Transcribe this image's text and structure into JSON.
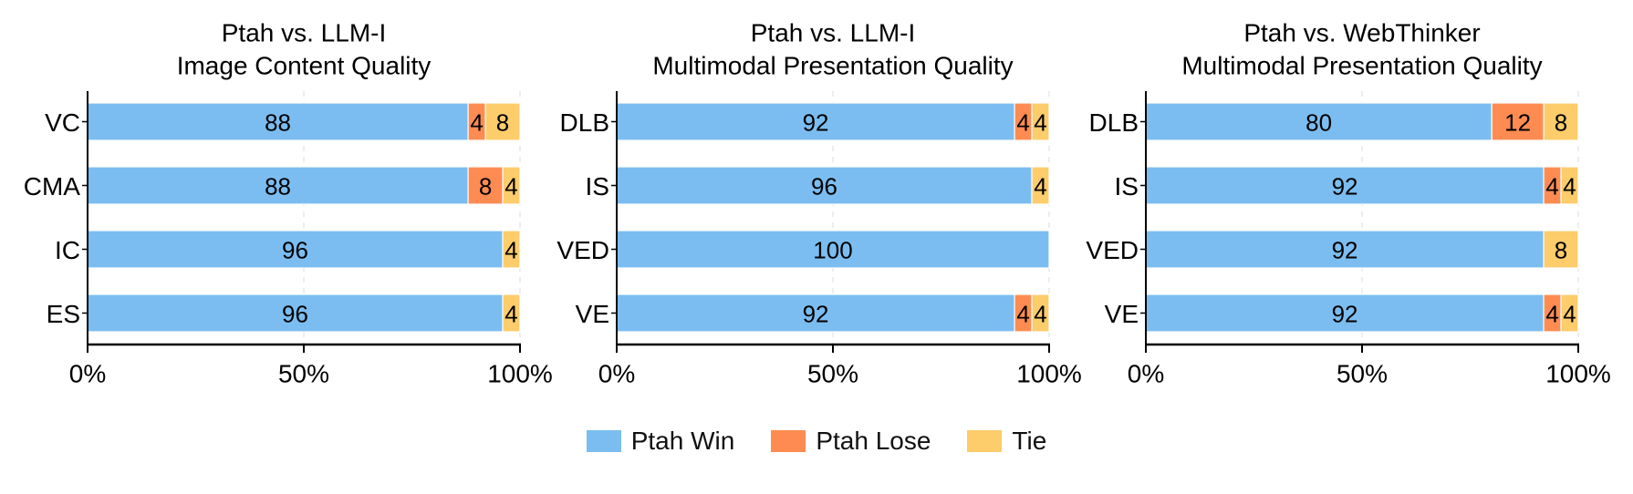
{
  "chart_data": [
    {
      "type": "bar",
      "orientation": "horizontal",
      "stacked": true,
      "title": "Ptah vs. LLM-I\nImage Content Quality",
      "categories": [
        "VC",
        "CMA",
        "IC",
        "ES"
      ],
      "series": [
        {
          "name": "Ptah Win",
          "values": [
            88,
            88,
            96,
            96
          ]
        },
        {
          "name": "Ptah Lose",
          "values": [
            4,
            8,
            0,
            0
          ]
        },
        {
          "name": "Tie",
          "values": [
            8,
            4,
            4,
            4
          ]
        }
      ],
      "xlim": [
        0,
        100
      ],
      "xticks": [
        "0%",
        "50%",
        "100%"
      ],
      "grid": true
    },
    {
      "type": "bar",
      "orientation": "horizontal",
      "stacked": true,
      "title": "Ptah vs. LLM-I\nMultimodal Presentation Quality",
      "categories": [
        "DLB",
        "IS",
        "VED",
        "VE"
      ],
      "series": [
        {
          "name": "Ptah Win",
          "values": [
            92,
            96,
            100,
            92
          ]
        },
        {
          "name": "Ptah Lose",
          "values": [
            4,
            0,
            0,
            4
          ]
        },
        {
          "name": "Tie",
          "values": [
            4,
            4,
            0,
            4
          ]
        }
      ],
      "xlim": [
        0,
        100
      ],
      "xticks": [
        "0%",
        "50%",
        "100%"
      ],
      "grid": true
    },
    {
      "type": "bar",
      "orientation": "horizontal",
      "stacked": true,
      "title": "Ptah vs. WebThinker\nMultimodal Presentation Quality",
      "categories": [
        "DLB",
        "IS",
        "VED",
        "VE"
      ],
      "series": [
        {
          "name": "Ptah Win",
          "values": [
            80,
            92,
            92,
            92
          ]
        },
        {
          "name": "Ptah Lose",
          "values": [
            12,
            4,
            0,
            4
          ]
        },
        {
          "name": "Tie",
          "values": [
            8,
            4,
            8,
            4
          ]
        }
      ],
      "xlim": [
        0,
        100
      ],
      "xticks": [
        "0%",
        "50%",
        "100%"
      ],
      "grid": true
    }
  ],
  "legend": {
    "placement": "bottom-center",
    "items": [
      {
        "label": "Ptah Win",
        "color": "#7bbdf0"
      },
      {
        "label": "Ptah Lose",
        "color": "#fe8c52"
      },
      {
        "label": "Tie",
        "color": "#fdcc6b"
      }
    ]
  },
  "colors": {
    "win": "#7bbdf0",
    "lose": "#fe8c52",
    "tie": "#fdcc6b",
    "grid": "#dddddd",
    "axis": "#000000"
  }
}
